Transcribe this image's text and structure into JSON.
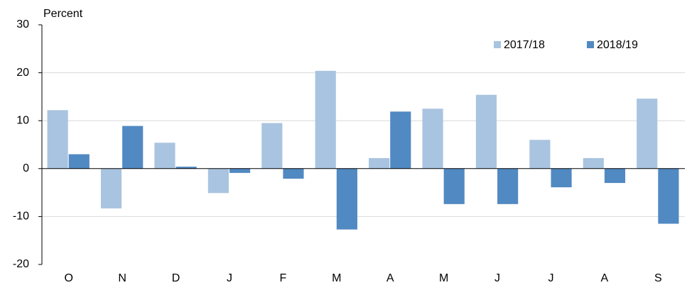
{
  "chart_data": {
    "type": "bar",
    "y_label": "Percent",
    "categories": [
      "O",
      "N",
      "D",
      "J",
      "F",
      "M",
      "A",
      "M",
      "J",
      "J",
      "A",
      "S"
    ],
    "series": [
      {
        "name": "2017/18",
        "color": "#a9c4e0",
        "values": [
          12.2,
          -8.3,
          5.4,
          -5.1,
          9.5,
          20.4,
          2.2,
          12.5,
          15.4,
          6.0,
          2.2,
          14.6
        ]
      },
      {
        "name": "2018/19",
        "color": "#5189c2",
        "values": [
          3.0,
          8.9,
          0.4,
          -0.9,
          -2.1,
          -12.7,
          11.9,
          -7.4,
          -7.4,
          -3.9,
          -3.0,
          -11.5
        ]
      }
    ],
    "ylim": [
      -20,
      30
    ],
    "yticks": [
      -20,
      -10,
      0,
      10,
      20,
      30
    ],
    "grid": true,
    "legend": "top-right"
  }
}
